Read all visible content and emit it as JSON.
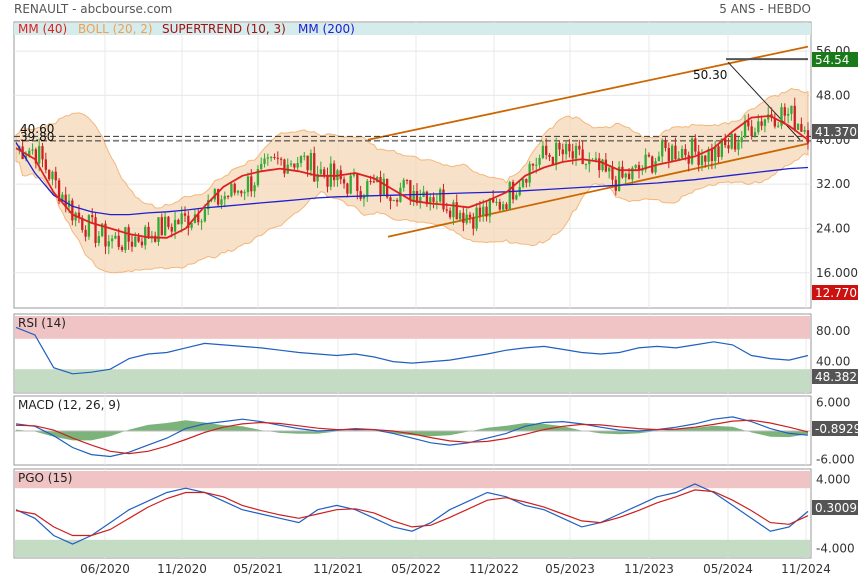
{
  "header": {
    "title": "RENAULT - abcbourse.com",
    "period": "5 ANS - HEBDO"
  },
  "legend": [
    {
      "label": "MM (40)",
      "color": "#e02020"
    },
    {
      "label": "BOLL (20, 2)",
      "color": "#f0a050"
    },
    {
      "label": "SUPERTREND (10, 3)",
      "color": "#a01010"
    },
    {
      "label": "MM (200)",
      "color": "#2020d0"
    }
  ],
  "chart_data": [
    {
      "type": "candlestick",
      "title": "RENAULT - abcbourse.com",
      "ylim": [
        10,
        58
      ],
      "y_ticks": [
        "56.00",
        "48.00",
        "40.00",
        "32.00",
        "24.00",
        "16.000"
      ],
      "x_ticks": [
        "06/2020",
        "11/2020",
        "05/2021",
        "11/2021",
        "05/2022",
        "11/2022",
        "05/2023",
        "11/2023",
        "05/2024",
        "11/2024"
      ],
      "last_price": "41.370",
      "tags": [
        {
          "label": "54.54",
          "value": 54.54,
          "color": "#1a7a1a"
        },
        {
          "label": "41.370",
          "value": 41.37,
          "color": "#555555"
        },
        {
          "label": "12.770",
          "value": 12.77,
          "color": "#cc1111"
        }
      ],
      "annotations": [
        "50.30",
        "40.60",
        "39.80"
      ],
      "series": [
        {
          "name": "MM (40)",
          "values": [
            38.5,
            36.5,
            30.5,
            26.5,
            25.0,
            24.0,
            23.0,
            22.4,
            22.3,
            24.0,
            28.0,
            31.5,
            33.5,
            34.3,
            34.8,
            34.3,
            33.5,
            33.5,
            34.0,
            33.0,
            31.0,
            29.0,
            28.5,
            28.2,
            27.8,
            29.0,
            30.5,
            33.5,
            35.0,
            36.0,
            36.5,
            36.0,
            34.5,
            34.5,
            35.5,
            36.2,
            37.0,
            38.5,
            41.5,
            44.0,
            44.3,
            42.5,
            40.0
          ]
        },
        {
          "name": "MM (200)",
          "values": [
            39.5,
            34.0,
            30.0,
            28.0,
            27.0,
            26.5,
            26.5,
            26.8,
            27.0,
            27.3,
            27.7,
            28.0,
            28.3,
            28.6,
            28.9,
            29.2,
            29.5,
            29.7,
            29.8,
            29.9,
            30.0,
            30.1,
            30.2,
            30.3,
            30.4,
            30.5,
            30.6,
            30.8,
            31.0,
            31.2,
            31.4,
            31.6,
            31.8,
            32.0,
            32.2,
            32.5,
            32.8,
            33.2,
            33.6,
            34.0,
            34.4,
            34.8,
            35.0
          ]
        },
        {
          "name": "BOLL (20, 2)",
          "values": []
        },
        {
          "name": "SUPERTREND (10, 3)",
          "values": []
        }
      ]
    },
    {
      "type": "line",
      "title": "RSI (14)",
      "ylim": [
        0,
        100
      ],
      "y_ticks": [
        "80.00",
        "40.00"
      ],
      "last": "48.382",
      "series": [
        {
          "name": "RSI (14)",
          "values": [
            85,
            75,
            32,
            24,
            26,
            30,
            44,
            50,
            52,
            58,
            64,
            62,
            60,
            58,
            55,
            52,
            50,
            48,
            50,
            46,
            40,
            38,
            40,
            42,
            46,
            50,
            55,
            58,
            60,
            56,
            52,
            50,
            52,
            58,
            60,
            58,
            62,
            66,
            62,
            48,
            44,
            42,
            48
          ]
        }
      ]
    },
    {
      "type": "line",
      "title": "MACD (12, 26, 9)",
      "ylim": [
        -7,
        7
      ],
      "y_ticks": [
        "6.000",
        "-6.000"
      ],
      "last": "-0.8929",
      "series": [
        {
          "name": "MACD",
          "values": [
            1.5,
            1.0,
            -1.0,
            -3.5,
            -5.0,
            -5.4,
            -4.5,
            -3.0,
            -1.5,
            0.5,
            1.5,
            2.0,
            2.5,
            2.0,
            1.2,
            0.5,
            0.0,
            0.2,
            0.5,
            0.3,
            -0.5,
            -1.5,
            -2.5,
            -3.0,
            -2.5,
            -1.5,
            -0.5,
            1.0,
            1.8,
            2.0,
            1.5,
            0.8,
            0.2,
            0.0,
            0.3,
            0.8,
            1.5,
            2.5,
            3.0,
            2.0,
            0.5,
            -0.5,
            -0.9
          ]
        },
        {
          "name": "Signal",
          "values": [
            1.2,
            1.1,
            0.2,
            -1.5,
            -3.0,
            -4.3,
            -4.8,
            -4.3,
            -3.2,
            -1.8,
            -0.3,
            0.8,
            1.5,
            1.8,
            1.6,
            1.1,
            0.6,
            0.3,
            0.3,
            0.3,
            0.0,
            -0.6,
            -1.4,
            -2.1,
            -2.4,
            -2.2,
            -1.6,
            -0.7,
            0.3,
            1.0,
            1.4,
            1.3,
            0.9,
            0.5,
            0.3,
            0.4,
            0.8,
            1.4,
            2.1,
            2.3,
            1.7,
            0.8,
            -0.2
          ]
        }
      ]
    },
    {
      "type": "line",
      "title": "PGO (15)",
      "ylim": [
        -5,
        5
      ],
      "y_ticks": [
        "4.000",
        "-4.000"
      ],
      "last": "0.3009",
      "series": [
        {
          "name": "PGO (15)",
          "values": [
            0.5,
            -0.5,
            -2.5,
            -3.5,
            -2.5,
            -1.0,
            0.5,
            1.5,
            2.5,
            3.0,
            2.5,
            1.5,
            0.5,
            0.0,
            -0.5,
            -1.0,
            0.5,
            1.0,
            0.5,
            -0.5,
            -1.5,
            -2.0,
            -1.0,
            0.5,
            1.5,
            2.5,
            2.0,
            1.0,
            0.5,
            -0.5,
            -1.5,
            -1.0,
            0.0,
            1.0,
            2.0,
            2.5,
            3.5,
            2.5,
            1.0,
            -0.5,
            -2.0,
            -1.5,
            0.3
          ]
        },
        {
          "name": "Signal",
          "values": [
            0.4,
            0.0,
            -1.5,
            -2.5,
            -2.5,
            -1.8,
            -0.5,
            0.8,
            1.8,
            2.5,
            2.5,
            2.0,
            1.0,
            0.4,
            -0.1,
            -0.5,
            0.0,
            0.5,
            0.6,
            0.1,
            -0.8,
            -1.5,
            -1.3,
            -0.4,
            0.6,
            1.6,
            1.9,
            1.4,
            0.8,
            0.0,
            -0.8,
            -1.0,
            -0.4,
            0.4,
            1.3,
            2.0,
            2.8,
            2.6,
            1.6,
            0.4,
            -1.0,
            -1.2,
            -0.2
          ]
        }
      ]
    }
  ]
}
